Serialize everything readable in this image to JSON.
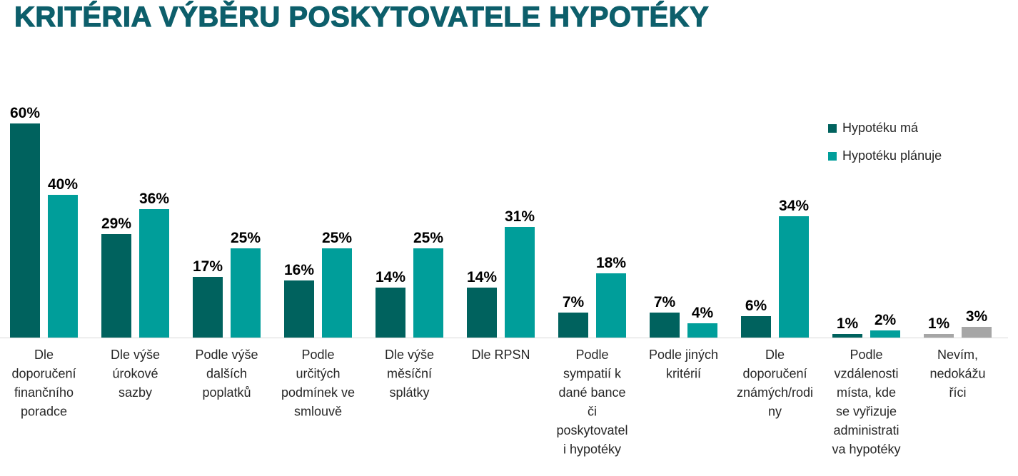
{
  "title": "KRITÉRIA VÝBĚRU POSKYTOVATELE HYPOTÉKY",
  "legend": [
    {
      "label": "Hypotéku má",
      "color": "#00625e"
    },
    {
      "label": "Hypotéku plánuje",
      "color": "#009e9a"
    }
  ],
  "colors": {
    "title": "#0d5f6b",
    "series_has": "#00625e",
    "series_plans": "#009e9a",
    "dont_know": "#a6a6a6",
    "axis": "#d9d9d9",
    "label": "#000000",
    "category": "#262626"
  },
  "chart_data": {
    "type": "bar",
    "title": "KRITÉRIA VÝBĚRU POSKYTOVATELE HYPOTÉKY",
    "xlabel": "",
    "ylabel": "",
    "ylim": [
      0,
      60
    ],
    "grid": false,
    "legend_position": "top-right",
    "value_format": "percent",
    "categories": [
      "Dle doporučení finančního poradce",
      "Dle výše úrokové sazby",
      "Podle výše dalších poplatků",
      "Podle určitých podmínek ve smlouvě",
      "Dle výše měsíční splátky",
      "Dle RPSN",
      "Podle sympatií k dané bance či poskytovatel i hypotéky",
      "Podle jiných kritérií",
      "Dle doporučení známých/rodi ny",
      "Podle vzdálenosti místa, kde se vyřizuje administrati va hypotéky",
      "Nevím, nedokážu říci"
    ],
    "category_lines": [
      [
        "Dle",
        "doporučení",
        "finančního",
        "poradce"
      ],
      [
        "Dle výše",
        "úrokové",
        "sazby"
      ],
      [
        "Podle výše",
        "dalších",
        "poplatků"
      ],
      [
        "Podle",
        "určitých",
        "podmínek ve",
        "smlouvě"
      ],
      [
        "Dle výše",
        "měsíční",
        "splátky"
      ],
      [
        "Dle RPSN"
      ],
      [
        "Podle",
        "sympatií k",
        "dané bance",
        "či",
        "poskytovatel",
        "i hypotéky"
      ],
      [
        "Podle jiných",
        "kritérií"
      ],
      [
        "Dle",
        "doporučení",
        "známých/rodi",
        "ny"
      ],
      [
        "Podle",
        "vzdálenosti",
        "místa, kde",
        "se vyřizuje",
        "administrati",
        "va hypotéky"
      ],
      [
        "Nevím,",
        "nedokážu",
        "říci"
      ]
    ],
    "series": [
      {
        "name": "Hypotéku má",
        "values": [
          60,
          29,
          17,
          16,
          14,
          14,
          7,
          7,
          6,
          1,
          1
        ]
      },
      {
        "name": "Hypotéku plánuje",
        "values": [
          40,
          36,
          25,
          25,
          25,
          31,
          18,
          4,
          34,
          2,
          3
        ]
      }
    ],
    "neutral_categories": [
      10
    ]
  }
}
